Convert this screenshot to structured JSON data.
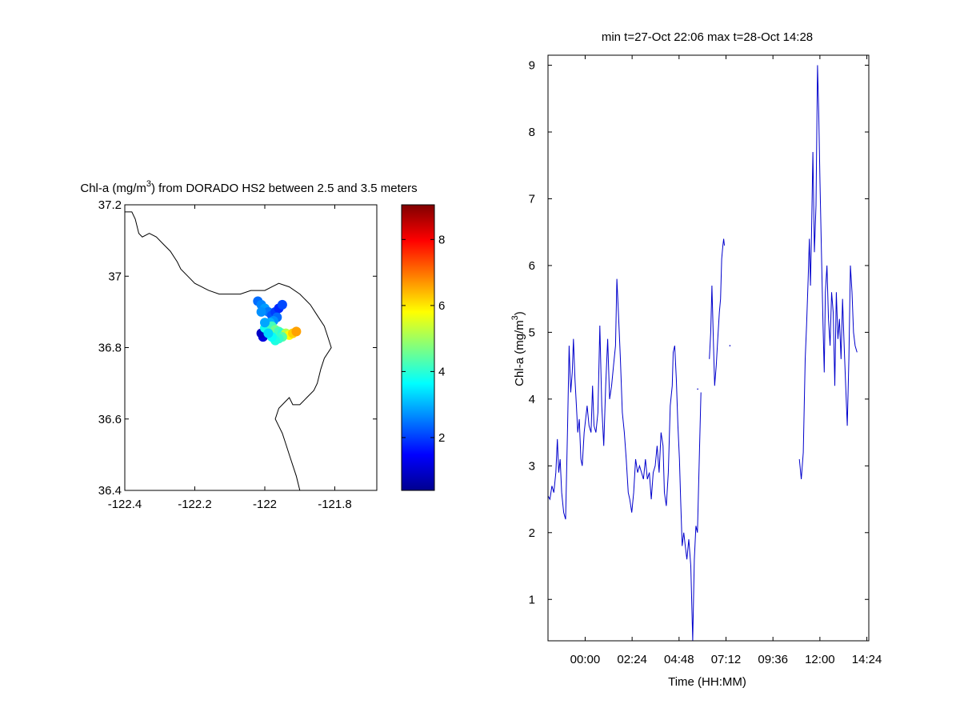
{
  "chart_data": [
    {
      "type": "scatter",
      "title_prefix": "Chl-a (mg/m",
      "title_sup": "3",
      "title_suffix": ") from DORADO HS2 between 2.5 and 3.5 meters",
      "xlim": [
        -122.4,
        -121.68
      ],
      "ylim": [
        36.4,
        37.2
      ],
      "xticks": [
        -122.4,
        -122.2,
        -122,
        -121.8
      ],
      "xtick_labels": [
        "-122.4",
        "-122.2",
        "-122",
        "-121.8"
      ],
      "yticks": [
        36.4,
        36.6,
        36.8,
        37.0,
        37.2
      ],
      "ytick_labels": [
        "36.4",
        "36.6",
        "36.8",
        "37",
        "37.2"
      ],
      "colorbar": {
        "colormap": "jet",
        "range": [
          0.4,
          9.05
        ],
        "ticks": [
          2,
          4,
          6,
          8
        ],
        "tick_labels": [
          "2",
          "4",
          "6",
          "8"
        ]
      },
      "coastline": [
        [
          -122.4,
          37.18
        ],
        [
          -122.38,
          37.18
        ],
        [
          -122.37,
          37.16
        ],
        [
          -122.36,
          37.12
        ],
        [
          -122.35,
          37.11
        ],
        [
          -122.33,
          37.12
        ],
        [
          -122.31,
          37.11
        ],
        [
          -122.29,
          37.09
        ],
        [
          -122.27,
          37.07
        ],
        [
          -122.25,
          37.04
        ],
        [
          -122.24,
          37.02
        ],
        [
          -122.22,
          37.0
        ],
        [
          -122.2,
          36.98
        ],
        [
          -122.18,
          36.97
        ],
        [
          -122.16,
          36.96
        ],
        [
          -122.13,
          36.95
        ],
        [
          -122.1,
          36.95
        ],
        [
          -122.07,
          36.95
        ],
        [
          -122.04,
          36.96
        ],
        [
          -122.02,
          36.96
        ],
        [
          -122.0,
          36.96
        ],
        [
          -121.98,
          36.97
        ],
        [
          -121.96,
          36.98
        ],
        [
          -121.93,
          36.97
        ],
        [
          -121.9,
          36.95
        ],
        [
          -121.87,
          36.92
        ],
        [
          -121.85,
          36.89
        ],
        [
          -121.83,
          36.86
        ],
        [
          -121.82,
          36.83
        ],
        [
          -121.81,
          36.8
        ],
        [
          -121.83,
          36.77
        ],
        [
          -121.84,
          36.74
        ],
        [
          -121.85,
          36.7
        ],
        [
          -121.86,
          36.68
        ],
        [
          -121.88,
          36.66
        ],
        [
          -121.9,
          36.64
        ],
        [
          -121.92,
          36.64
        ],
        [
          -121.93,
          36.66
        ],
        [
          -121.95,
          36.64
        ],
        [
          -121.96,
          36.63
        ],
        [
          -121.97,
          36.6
        ],
        [
          -121.96,
          36.58
        ],
        [
          -121.95,
          36.56
        ],
        [
          -121.94,
          36.53
        ],
        [
          -121.93,
          36.5
        ],
        [
          -121.92,
          36.47
        ],
        [
          -121.91,
          36.44
        ],
        [
          -121.9,
          36.4
        ]
      ],
      "points": [
        [
          -122.02,
          36.93,
          2.4
        ],
        [
          -122.01,
          36.92,
          2.6
        ],
        [
          -122.0,
          36.91,
          2.8
        ],
        [
          -121.99,
          36.9,
          2.5
        ],
        [
          -121.98,
          36.89,
          2.2
        ],
        [
          -121.97,
          36.9,
          2.0
        ],
        [
          -121.96,
          36.91,
          1.8
        ],
        [
          -121.95,
          36.92,
          2.1
        ],
        [
          -121.965,
          36.885,
          2.4
        ],
        [
          -121.975,
          36.875,
          2.7
        ],
        [
          -121.985,
          36.87,
          3.0
        ],
        [
          -121.99,
          36.86,
          3.2
        ],
        [
          -121.995,
          36.85,
          3.6
        ],
        [
          -122.0,
          36.84,
          3.4
        ],
        [
          -122.005,
          36.83,
          1.2
        ],
        [
          -122.01,
          36.84,
          1.0
        ],
        [
          -122.0,
          36.855,
          3.8
        ],
        [
          -121.98,
          36.86,
          4.2
        ],
        [
          -121.97,
          36.85,
          4.6
        ],
        [
          -121.96,
          36.845,
          4.2
        ],
        [
          -121.95,
          36.84,
          4.0
        ],
        [
          -121.94,
          36.84,
          5.2
        ],
        [
          -121.93,
          36.835,
          5.8
        ],
        [
          -121.92,
          36.84,
          6.2
        ],
        [
          -121.91,
          36.845,
          6.6
        ],
        [
          -121.95,
          36.83,
          4.4
        ],
        [
          -121.96,
          36.825,
          4.1
        ],
        [
          -121.97,
          36.82,
          3.9
        ],
        [
          -121.98,
          36.83,
          3.7
        ],
        [
          -121.99,
          36.84,
          3.3
        ],
        [
          -122.0,
          36.87,
          2.9
        ],
        [
          -122.01,
          36.9,
          2.7
        ]
      ]
    },
    {
      "type": "line",
      "title": "min t=27-Oct 22:06 max t=28-Oct 14:28",
      "xlabel": "Time (HH:MM)",
      "ylabel_prefix": "Chl-a (mg/m",
      "ylabel_sup": "3",
      "ylabel_suffix": ")",
      "xlim": [
        -1.9,
        14.5
      ],
      "ylim": [
        0.38,
        9.15
      ],
      "xticks": [
        0,
        2.4,
        4.8,
        7.2,
        9.6,
        12,
        14.4
      ],
      "xtick_labels": [
        "00:00",
        "02:24",
        "04:48",
        "07:12",
        "09:36",
        "12:00",
        "14:24"
      ],
      "yticks": [
        1,
        2,
        3,
        4,
        5,
        6,
        7,
        8,
        9
      ],
      "ytick_labels": [
        "1",
        "2",
        "3",
        "4",
        "5",
        "6",
        "7",
        "8",
        "9"
      ],
      "series": [
        {
          "color": "#0000cc",
          "segments": [
            [
              [
                -1.9,
                2.55
              ],
              [
                -1.8,
                2.5
              ],
              [
                -1.7,
                2.7
              ],
              [
                -1.6,
                2.6
              ],
              [
                -1.5,
                2.9
              ],
              [
                -1.42,
                3.4
              ],
              [
                -1.35,
                2.9
              ],
              [
                -1.28,
                3.1
              ],
              [
                -1.2,
                2.6
              ],
              [
                -1.1,
                2.3
              ],
              [
                -1.0,
                2.2
              ],
              [
                -0.9,
                3.6
              ],
              [
                -0.82,
                4.8
              ],
              [
                -0.74,
                4.1
              ],
              [
                -0.66,
                4.4
              ],
              [
                -0.6,
                4.9
              ],
              [
                -0.52,
                4.3
              ],
              [
                -0.45,
                3.9
              ],
              [
                -0.38,
                3.5
              ],
              [
                -0.3,
                3.7
              ],
              [
                -0.22,
                3.1
              ],
              [
                -0.15,
                3.0
              ],
              [
                -0.05,
                3.5
              ],
              [
                0.1,
                3.9
              ],
              [
                0.2,
                3.6
              ],
              [
                0.3,
                3.5
              ],
              [
                0.38,
                4.2
              ],
              [
                0.45,
                3.6
              ],
              [
                0.55,
                3.5
              ],
              [
                0.65,
                3.8
              ],
              [
                0.75,
                5.1
              ],
              [
                0.85,
                3.9
              ],
              [
                0.95,
                3.3
              ],
              [
                1.05,
                4.2
              ],
              [
                1.15,
                4.9
              ],
              [
                1.25,
                4.0
              ],
              [
                1.35,
                4.2
              ],
              [
                1.45,
                4.5
              ],
              [
                1.55,
                4.8
              ],
              [
                1.62,
                5.8
              ],
              [
                1.7,
                5.3
              ],
              [
                1.8,
                4.6
              ],
              [
                1.9,
                3.8
              ],
              [
                2.0,
                3.5
              ],
              [
                2.1,
                3.1
              ],
              [
                2.2,
                2.6
              ],
              [
                2.28,
                2.5
              ],
              [
                2.38,
                2.3
              ],
              [
                2.48,
                2.6
              ],
              [
                2.58,
                3.1
              ],
              [
                2.68,
                2.9
              ],
              [
                2.78,
                3.0
              ],
              [
                2.88,
                2.9
              ],
              [
                2.98,
                2.8
              ],
              [
                3.08,
                3.1
              ],
              [
                3.18,
                2.8
              ],
              [
                3.28,
                2.9
              ],
              [
                3.38,
                2.5
              ],
              [
                3.48,
                2.9
              ],
              [
                3.58,
                3.0
              ],
              [
                3.68,
                3.3
              ],
              [
                3.78,
                2.9
              ],
              [
                3.88,
                3.5
              ],
              [
                3.98,
                3.3
              ],
              [
                4.05,
                2.6
              ],
              [
                4.15,
                2.4
              ],
              [
                4.25,
                2.9
              ],
              [
                4.35,
                3.9
              ],
              [
                4.45,
                4.2
              ],
              [
                4.5,
                4.7
              ],
              [
                4.58,
                4.8
              ],
              [
                4.66,
                4.3
              ],
              [
                4.74,
                3.6
              ],
              [
                4.82,
                3.1
              ],
              [
                4.88,
                2.5
              ],
              [
                4.96,
                1.8
              ],
              [
                5.04,
                2.0
              ],
              [
                5.12,
                1.8
              ],
              [
                5.2,
                1.6
              ],
              [
                5.3,
                1.9
              ],
              [
                5.4,
                1.5
              ],
              [
                5.5,
                0.38
              ],
              [
                5.58,
                1.6
              ],
              [
                5.66,
                2.1
              ],
              [
                5.74,
                2.0
              ],
              [
                5.84,
                3.2
              ],
              [
                5.92,
                4.1
              ]
            ],
            [
              [
                6.35,
                4.6
              ],
              [
                6.42,
                5.0
              ],
              [
                6.48,
                5.7
              ],
              [
                6.56,
                4.8
              ],
              [
                6.62,
                4.2
              ],
              [
                6.7,
                4.5
              ],
              [
                6.78,
                4.9
              ],
              [
                6.86,
                5.3
              ],
              [
                6.92,
                5.5
              ],
              [
                6.98,
                6.1
              ],
              [
                7.04,
                6.3
              ],
              [
                7.08,
                6.4
              ],
              [
                7.12,
                6.3
              ]
            ],
            [
              [
                10.95,
                3.1
              ],
              [
                11.05,
                2.8
              ],
              [
                11.15,
                3.2
              ],
              [
                11.25,
                4.6
              ],
              [
                11.32,
                5.1
              ],
              [
                11.4,
                5.8
              ],
              [
                11.46,
                6.4
              ],
              [
                11.52,
                5.7
              ],
              [
                11.58,
                6.6
              ],
              [
                11.64,
                7.7
              ],
              [
                11.72,
                6.2
              ],
              [
                11.8,
                6.9
              ],
              [
                11.88,
                9.0
              ],
              [
                11.94,
                8.3
              ],
              [
                12.0,
                7.3
              ],
              [
                12.08,
                6.2
              ],
              [
                12.16,
                5.1
              ],
              [
                12.22,
                4.4
              ],
              [
                12.28,
                5.6
              ],
              [
                12.36,
                6.0
              ],
              [
                12.44,
                5.2
              ],
              [
                12.52,
                4.8
              ],
              [
                12.6,
                5.6
              ],
              [
                12.68,
                5.3
              ],
              [
                12.76,
                4.2
              ],
              [
                12.84,
                5.6
              ],
              [
                12.92,
                4.9
              ],
              [
                13.0,
                5.2
              ],
              [
                13.08,
                4.6
              ],
              [
                13.16,
                5.5
              ],
              [
                13.24,
                4.8
              ],
              [
                13.32,
                4.2
              ],
              [
                13.4,
                3.6
              ],
              [
                13.48,
                4.6
              ],
              [
                13.56,
                6.0
              ],
              [
                13.64,
                5.6
              ],
              [
                13.72,
                5.0
              ],
              [
                13.8,
                4.8
              ],
              [
                13.9,
                4.7
              ]
            ]
          ]
        }
      ],
      "dots": [
        [
          5.75,
          4.15
        ],
        [
          7.4,
          4.8
        ]
      ]
    }
  ]
}
